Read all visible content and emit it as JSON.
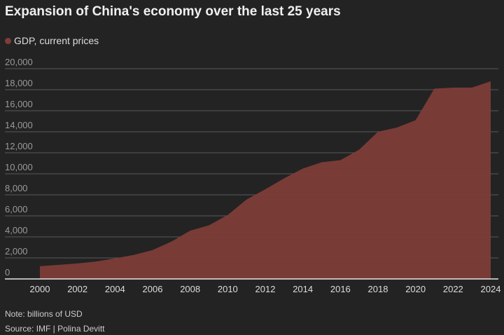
{
  "chart_data": {
    "type": "area",
    "title": "Expansion of China's economy over the last 25 years",
    "series": [
      {
        "name": "GDP, current prices",
        "color": "#7e3d38",
        "x": [
          2000,
          2001,
          2002,
          2003,
          2004,
          2005,
          2006,
          2007,
          2008,
          2009,
          2010,
          2011,
          2012,
          2013,
          2014,
          2015,
          2016,
          2017,
          2018,
          2019,
          2020,
          2021,
          2022,
          2023,
          2024
        ],
        "values": [
          1211,
          1339,
          1471,
          1660,
          1955,
          2286,
          2752,
          3550,
          4594,
          5101,
          6087,
          7552,
          8532,
          9570,
          10500,
          11100,
          11300,
          12300,
          14000,
          14400,
          15100,
          18100,
          18200,
          18200,
          18800
        ]
      }
    ],
    "xlim": [
      2000,
      2024
    ],
    "ylim": [
      0,
      20000
    ],
    "xticks": [
      "2000",
      "2002",
      "2004",
      "2006",
      "2008",
      "2010",
      "2012",
      "2014",
      "2016",
      "2018",
      "2020",
      "2022",
      "2024"
    ],
    "yticks": [
      "0",
      "2,000",
      "4,000",
      "6,000",
      "8,000",
      "10,000",
      "12,000",
      "14,000",
      "16,000",
      "18,000",
      "20,000"
    ],
    "grid": true,
    "legend_position": "top-left",
    "note": "Note: billions of USD",
    "source": "Source: IMF | Polina Devitt"
  }
}
